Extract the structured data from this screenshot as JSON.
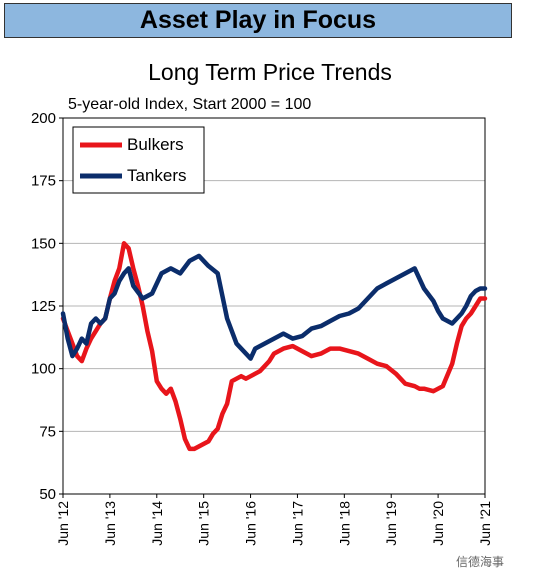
{
  "banner": "Asset Play in Focus",
  "watermark": "信德海事",
  "chart_data": {
    "type": "line",
    "title": "Long Term Price Trends",
    "subtitle": "5-year-old Index, Start 2000 = 100",
    "ylim": [
      50,
      200
    ],
    "yticks": [
      50,
      75,
      100,
      125,
      150,
      175,
      200
    ],
    "xlim": [
      2012.5,
      2021.5
    ],
    "x_tick_labels": [
      "Jun '12",
      "Jun '13",
      "Jun '14",
      "Jun '15",
      "Jun '16",
      "Jun '17",
      "Jun '18",
      "Jun '19",
      "Jun '20",
      "Jun '21"
    ],
    "grid": true,
    "legend_position": "top-left",
    "series": [
      {
        "name": "Bulkers",
        "color": "#e8151b",
        "x": [
          2012.5,
          2012.6,
          2012.7,
          2012.8,
          2012.9,
          2013.0,
          2013.1,
          2013.2,
          2013.3,
          2013.4,
          2013.5,
          2013.6,
          2013.7,
          2013.8,
          2013.9,
          2014.0,
          2014.1,
          2014.2,
          2014.3,
          2014.4,
          2014.5,
          2014.6,
          2014.7,
          2014.8,
          2014.9,
          2015.0,
          2015.1,
          2015.2,
          2015.3,
          2015.4,
          2015.5,
          2015.6,
          2015.7,
          2015.8,
          2015.9,
          2016.0,
          2016.1,
          2016.2,
          2016.3,
          2016.4,
          2016.5,
          2016.6,
          2016.7,
          2016.8,
          2016.9,
          2017.0,
          2017.2,
          2017.4,
          2017.6,
          2017.8,
          2018.0,
          2018.2,
          2018.4,
          2018.6,
          2018.8,
          2019.0,
          2019.2,
          2019.4,
          2019.6,
          2019.8,
          2020.0,
          2020.1,
          2020.2,
          2020.4,
          2020.6,
          2020.8,
          2020.9,
          2021.0,
          2021.1,
          2021.2,
          2021.3,
          2021.4,
          2021.5
        ],
        "y": [
          120,
          115,
          110,
          105,
          103,
          108,
          112,
          115,
          118,
          120,
          128,
          135,
          140,
          150,
          148,
          140,
          133,
          125,
          115,
          107,
          95,
          92,
          90,
          92,
          87,
          80,
          72,
          68,
          68,
          69,
          70,
          71,
          74,
          76,
          82,
          86,
          95,
          96,
          97,
          96,
          97,
          98,
          99,
          101,
          103,
          106,
          108,
          109,
          107,
          105,
          106,
          108,
          108,
          107,
          106,
          104,
          102,
          101,
          98,
          94,
          93,
          92,
          92,
          91,
          93,
          102,
          110,
          117,
          120,
          122,
          125,
          128,
          128
        ]
      },
      {
        "name": "Tankers",
        "color": "#0b2d6b",
        "x": [
          2012.5,
          2012.6,
          2012.7,
          2012.8,
          2012.9,
          2013.0,
          2013.1,
          2013.2,
          2013.3,
          2013.4,
          2013.5,
          2013.6,
          2013.7,
          2013.8,
          2013.9,
          2014.0,
          2014.2,
          2014.4,
          2014.6,
          2014.8,
          2015.0,
          2015.2,
          2015.4,
          2015.6,
          2015.8,
          2016.0,
          2016.2,
          2016.4,
          2016.5,
          2016.6,
          2016.8,
          2017.0,
          2017.2,
          2017.4,
          2017.6,
          2017.8,
          2018.0,
          2018.2,
          2018.4,
          2018.6,
          2018.8,
          2019.0,
          2019.2,
          2019.4,
          2019.6,
          2019.8,
          2020.0,
          2020.2,
          2020.4,
          2020.5,
          2020.6,
          2020.8,
          2020.9,
          2021.0,
          2021.1,
          2021.2,
          2021.3,
          2021.4,
          2021.5
        ],
        "y": [
          122,
          112,
          105,
          108,
          112,
          110,
          118,
          120,
          118,
          120,
          128,
          130,
          135,
          138,
          140,
          133,
          128,
          130,
          138,
          140,
          138,
          143,
          145,
          141,
          138,
          120,
          110,
          106,
          104,
          108,
          110,
          112,
          114,
          112,
          113,
          116,
          117,
          119,
          121,
          122,
          124,
          128,
          132,
          134,
          136,
          138,
          140,
          132,
          127,
          123,
          120,
          118,
          120,
          122,
          125,
          129,
          131,
          132,
          132
        ]
      }
    ]
  }
}
